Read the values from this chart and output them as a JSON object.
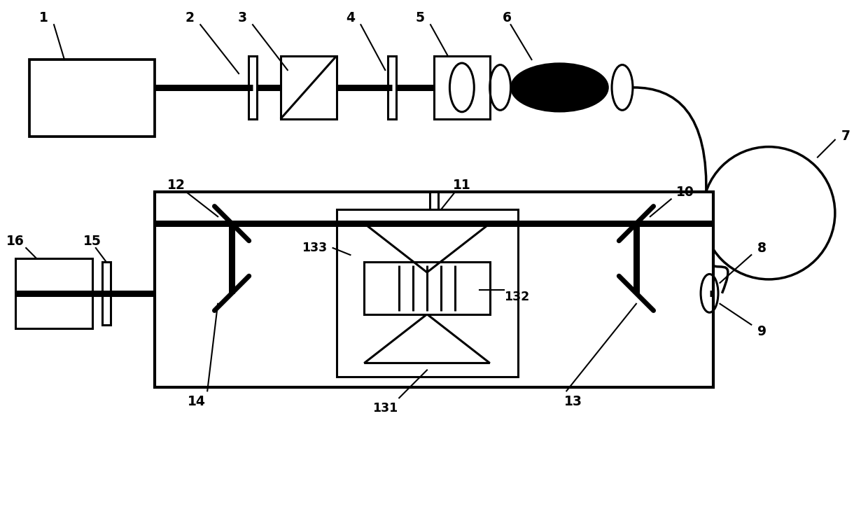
{
  "bg_color": "#ffffff",
  "line_color": "#000000",
  "lw": 2.2,
  "lw_thick": 6.5,
  "fig_width": 12.4,
  "fig_height": 7.44
}
